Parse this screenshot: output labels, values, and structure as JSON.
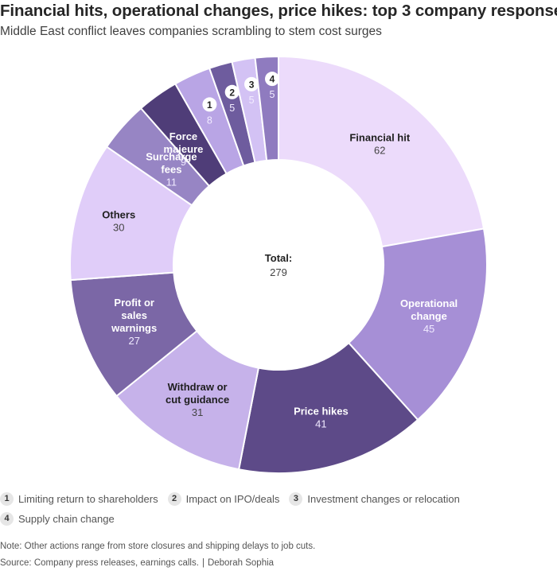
{
  "title": "Financial hits, operational changes, price hikes: top 3 company responses",
  "subtitle": "Middle East conflict leaves companies scrambling to stem cost surges",
  "chart_data": {
    "type": "pie",
    "variant": "donut",
    "center_label": "Total:",
    "total": "279",
    "slices": [
      {
        "label": "Financial hit",
        "value": 62,
        "color": "#ecdbfb"
      },
      {
        "label": "Operational change",
        "value": 45,
        "color": "#a68fd6"
      },
      {
        "label": "Price hikes",
        "value": 41,
        "color": "#5d4a88"
      },
      {
        "label": "Withdraw or cut guidance",
        "value": 31,
        "color": "#c6b2ea"
      },
      {
        "label": "Profit or sales warnings",
        "value": 27,
        "color": "#7b67a6"
      },
      {
        "label": "Others",
        "value": 30,
        "color": "#e0cdf9"
      },
      {
        "label": "Surcharge fees",
        "value": 11,
        "color": "#9785c4"
      },
      {
        "label": "Force majeure",
        "value": 9,
        "color": "#4f3d78"
      },
      {
        "label": "1",
        "value": 8,
        "color": "#b9a5e5"
      },
      {
        "label": "2",
        "value": 5,
        "color": "#6e5c9e"
      },
      {
        "label": "3",
        "value": 5,
        "color": "#d3c2f4"
      },
      {
        "label": "4",
        "value": 5,
        "color": "#8f7bbf"
      }
    ]
  },
  "legend": [
    {
      "num": "1",
      "text": "Limiting return to shareholders"
    },
    {
      "num": "2",
      "text": "Impact on IPO/deals"
    },
    {
      "num": "3",
      "text": "Investment changes or relocation"
    },
    {
      "num": "4",
      "text": "Supply chain change"
    }
  ],
  "note": "Note: Other actions range from store closures and shipping delays to job cuts.",
  "source": "Source: Company press releases, earnings calls.",
  "separator": "|",
  "author": "Deborah Sophia"
}
